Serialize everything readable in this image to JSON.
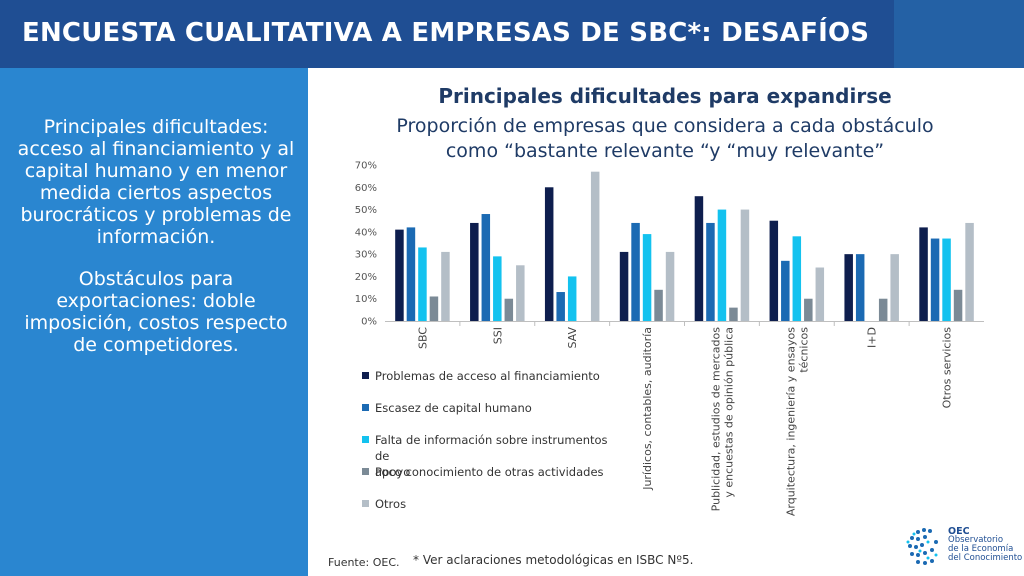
{
  "header": {
    "title": "ENCUESTA CUALITATIVA A EMPRESAS DE SBC*: DESAFÍOS"
  },
  "left_panel": {
    "paragraph1": "Principales dificultades: acceso al financiamiento y al capital humano y en menor medida ciertos aspectos burocráticos y problemas de información.",
    "paragraph2": "Obstáculos para exportaciones: doble imposición, costos respecto de competidores."
  },
  "chart_data": {
    "type": "bar",
    "title": "Principales dificultades para expandirse",
    "subtitle_line1": "Proporción de empresas que considera a cada obstáculo",
    "subtitle_line2": "como “bastante relevante “y “muy relevante”",
    "categories": [
      [
        "SBC"
      ],
      [
        "SSI"
      ],
      [
        "SAV"
      ],
      [
        "Jurídicos, contables, auditoría"
      ],
      [
        "Publicidad, estudios de mercados",
        "y encuestas de opinión pública"
      ],
      [
        "Arquitectura, ingeniería y ensayos",
        "técnicos"
      ],
      [
        "I+D"
      ],
      [
        "Otros servicios"
      ]
    ],
    "ylim": [
      0,
      70
    ],
    "yticks": [
      "0%",
      "10%",
      "20%",
      "30%",
      "40%",
      "50%",
      "60%",
      "70%"
    ],
    "series": [
      {
        "name": "Problemas de acceso al financiamiento",
        "color": "#0e1e4e",
        "values": [
          41,
          44,
          60,
          31,
          56,
          45,
          30,
          42
        ]
      },
      {
        "name": "Escasez de capital humano",
        "color": "#1b6ab3",
        "values": [
          42,
          48,
          13,
          44,
          44,
          27,
          30,
          37
        ]
      },
      {
        "name": "Falta de información sobre instrumentos de apoyo",
        "color": "#13c2ef",
        "values": [
          33,
          29,
          20,
          39,
          50,
          38,
          0,
          37
        ]
      },
      {
        "name": "Poco conocimiento de otras actividades",
        "color": "#7b8a96",
        "values": [
          11,
          10,
          0,
          14,
          6,
          10,
          10,
          14
        ]
      },
      {
        "name": "Otros",
        "color": "#b4bec7",
        "values": [
          31,
          25,
          67,
          31,
          50,
          24,
          30,
          44
        ]
      }
    ],
    "grid": false,
    "legend_position": "bottom-left"
  },
  "legend_lines": [
    [
      "Problemas de acceso al financiamiento"
    ],
    [
      "Escasez de capital humano"
    ],
    [
      "Falta de información sobre instrumentos de",
      "apoyo"
    ],
    [
      "Poco conocimiento de otras actividades"
    ],
    [
      "Otros"
    ]
  ],
  "footer": {
    "source": "Fuente: OEC.",
    "note": "* Ver aclaraciones metodológicas en ISBC Nº5."
  },
  "logo": {
    "acronym": "OEC",
    "line1": "Observatorio",
    "line2": "de la Economía",
    "line3": "del Conocimiento"
  }
}
